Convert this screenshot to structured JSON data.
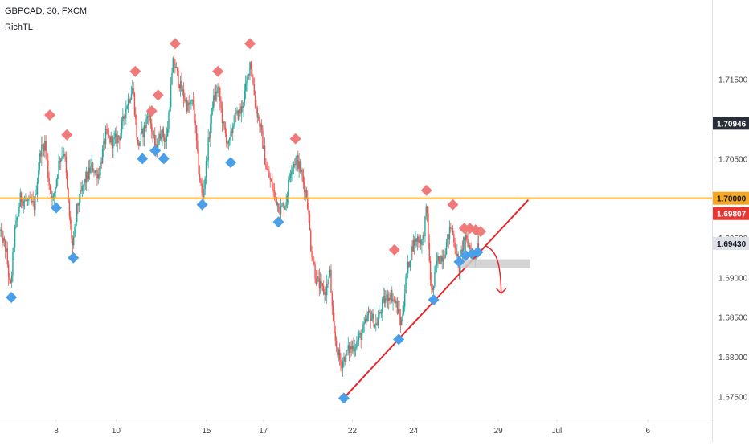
{
  "header": {
    "symbol_line": "GBPCAD, 30, FXCM",
    "indicator_name": "RichTL"
  },
  "chart_data": {
    "type": "candlestick",
    "title": "GBPCAD, 30, FXCM",
    "ylim": [
      1.6722,
      1.725
    ],
    "xlim": [
      0,
      100
    ],
    "grid": false,
    "price_axis_side": "right",
    "x_ticks": [
      {
        "label": "8",
        "x": 7.9
      },
      {
        "label": "10",
        "x": 16.3
      },
      {
        "label": "15",
        "x": 29.0
      },
      {
        "label": "17",
        "x": 37.0
      },
      {
        "label": "22",
        "x": 49.5
      },
      {
        "label": "24",
        "x": 58.1
      },
      {
        "label": "29",
        "x": 70.0
      },
      {
        "label": "Jul",
        "x": 78.2
      },
      {
        "label": "6",
        "x": 91.0
      }
    ],
    "y_ticks": [
      {
        "label": "1.71500",
        "y": 1.715
      },
      {
        "label": "1.71000",
        "y": 1.71
      },
      {
        "label": "1.70500",
        "y": 1.705
      },
      {
        "label": "1.70000",
        "y": 1.7
      },
      {
        "label": "1.69500",
        "y": 1.695
      },
      {
        "label": "1.69000",
        "y": 1.69
      },
      {
        "label": "1.68500",
        "y": 1.685
      },
      {
        "label": "1.68000",
        "y": 1.68
      },
      {
        "label": "1.67500",
        "y": 1.675
      }
    ],
    "price_labels": [
      {
        "label": "1.70946",
        "y": 1.70946,
        "style": "dark"
      },
      {
        "label": "1.70000",
        "y": 1.7,
        "style": "orange"
      },
      {
        "label": "1.69807",
        "y": 1.69807,
        "style": "red"
      },
      {
        "label": "1.69430",
        "y": 1.6943,
        "style": "light"
      }
    ],
    "price_path": [
      [
        0.0,
        1.696
      ],
      [
        1.0,
        1.6935
      ],
      [
        1.6,
        1.6882
      ],
      [
        2.2,
        1.6955
      ],
      [
        3.0,
        1.7
      ],
      [
        4.0,
        1.6995
      ],
      [
        5.0,
        1.699
      ],
      [
        5.8,
        1.706
      ],
      [
        6.5,
        1.707
      ],
      [
        7.0,
        1.702
      ],
      [
        7.6,
        1.6995
      ],
      [
        8.5,
        1.705
      ],
      [
        9.2,
        1.706
      ],
      [
        9.8,
        1.6985
      ],
      [
        10.4,
        1.6935
      ],
      [
        11.0,
        1.699
      ],
      [
        12.0,
        1.702
      ],
      [
        13.0,
        1.704
      ],
      [
        14.0,
        1.703
      ],
      [
        15.0,
        1.708
      ],
      [
        16.0,
        1.707
      ],
      [
        17.0,
        1.708
      ],
      [
        18.0,
        1.712
      ],
      [
        18.8,
        1.714
      ],
      [
        19.5,
        1.7065
      ],
      [
        20.5,
        1.709
      ],
      [
        21.0,
        1.711
      ],
      [
        22.0,
        1.706
      ],
      [
        22.8,
        1.7085
      ],
      [
        23.5,
        1.707
      ],
      [
        24.5,
        1.7175
      ],
      [
        25.5,
        1.714
      ],
      [
        26.5,
        1.7115
      ],
      [
        27.3,
        1.712
      ],
      [
        28.0,
        1.704
      ],
      [
        28.6,
        1.6998
      ],
      [
        29.3,
        1.706
      ],
      [
        30.0,
        1.712
      ],
      [
        30.8,
        1.714
      ],
      [
        31.5,
        1.709
      ],
      [
        32.3,
        1.7065
      ],
      [
        33.0,
        1.71
      ],
      [
        34.0,
        1.711
      ],
      [
        34.8,
        1.7145
      ],
      [
        35.3,
        1.7175
      ],
      [
        36.0,
        1.712
      ],
      [
        36.8,
        1.7085
      ],
      [
        37.5,
        1.704
      ],
      [
        38.5,
        1.701
      ],
      [
        39.5,
        1.6985
      ],
      [
        40.3,
        1.6995
      ],
      [
        41.0,
        1.704
      ],
      [
        41.8,
        1.705
      ],
      [
        42.5,
        1.703
      ],
      [
        43.3,
        1.7
      ],
      [
        43.8,
        1.694
      ],
      [
        44.5,
        1.69
      ],
      [
        45.0,
        1.689
      ],
      [
        45.8,
        1.688
      ],
      [
        46.5,
        1.6905
      ],
      [
        47.0,
        1.683
      ],
      [
        48.0,
        1.679
      ],
      [
        49.0,
        1.6808
      ],
      [
        50.0,
        1.6815
      ],
      [
        51.0,
        1.683
      ],
      [
        52.0,
        1.6855
      ],
      [
        53.0,
        1.684
      ],
      [
        54.0,
        1.687
      ],
      [
        55.0,
        1.688
      ],
      [
        55.8,
        1.6865
      ],
      [
        56.5,
        1.684
      ],
      [
        57.2,
        1.69
      ],
      [
        58.0,
        1.694
      ],
      [
        58.8,
        1.695
      ],
      [
        59.5,
        1.6945
      ],
      [
        60.1,
        1.699
      ],
      [
        60.5,
        1.6905
      ],
      [
        60.9,
        1.688
      ],
      [
        61.5,
        1.692
      ],
      [
        62.5,
        1.693
      ],
      [
        63.5,
        1.6965
      ],
      [
        64.0,
        1.6945
      ],
      [
        64.6,
        1.691
      ],
      [
        65.3,
        1.695
      ],
      [
        66.0,
        1.694
      ],
      [
        66.7,
        1.6925
      ],
      [
        67.2,
        1.6943
      ]
    ],
    "markers_high": [
      {
        "x": 7.0,
        "y": 1.7105
      },
      {
        "x": 9.4,
        "y": 1.708
      },
      {
        "x": 19.0,
        "y": 1.716
      },
      {
        "x": 21.3,
        "y": 1.711
      },
      {
        "x": 22.2,
        "y": 1.713
      },
      {
        "x": 24.6,
        "y": 1.7195
      },
      {
        "x": 30.6,
        "y": 1.716
      },
      {
        "x": 35.1,
        "y": 1.7195
      },
      {
        "x": 41.5,
        "y": 1.7075
      },
      {
        "x": 55.4,
        "y": 1.6935
      },
      {
        "x": 59.9,
        "y": 1.701
      },
      {
        "x": 63.6,
        "y": 1.6992
      },
      {
        "x": 65.2,
        "y": 1.6962
      },
      {
        "x": 66.0,
        "y": 1.6962
      },
      {
        "x": 66.8,
        "y": 1.696
      },
      {
        "x": 67.5,
        "y": 1.6958
      }
    ],
    "markers_low": [
      {
        "x": 1.6,
        "y": 1.6875
      },
      {
        "x": 7.9,
        "y": 1.6988
      },
      {
        "x": 10.3,
        "y": 1.6925
      },
      {
        "x": 20.0,
        "y": 1.705
      },
      {
        "x": 21.8,
        "y": 1.706
      },
      {
        "x": 23.0,
        "y": 1.705
      },
      {
        "x": 28.4,
        "y": 1.6992
      },
      {
        "x": 32.4,
        "y": 1.7045
      },
      {
        "x": 39.1,
        "y": 1.697
      },
      {
        "x": 48.3,
        "y": 1.6748
      },
      {
        "x": 56.0,
        "y": 1.6822
      },
      {
        "x": 60.9,
        "y": 1.6872
      },
      {
        "x": 64.5,
        "y": 1.692
      },
      {
        "x": 65.4,
        "y": 1.6928
      },
      {
        "x": 66.3,
        "y": 1.693
      },
      {
        "x": 67.1,
        "y": 1.6932
      }
    ],
    "annotations": {
      "horizontal_level": {
        "y": 1.7,
        "color": "#f5a623"
      },
      "trendline": {
        "points": [
          [
            48.3,
            1.6748
          ],
          [
            74.2,
            1.6998
          ]
        ],
        "color": "#e8262b"
      },
      "target_box": {
        "x1": 64.8,
        "x2": 74.5,
        "y1": 1.6912,
        "y2": 1.6923,
        "color": "#cccccc"
      },
      "forecast_arrow": {
        "points": [
          [
            68.2,
            1.694
          ],
          [
            69.8,
            1.6934
          ],
          [
            70.3,
            1.6917
          ],
          [
            70.4,
            1.688
          ]
        ],
        "color": "#e8262b"
      }
    },
    "colors": {
      "up": "#26a69a",
      "down": "#ef5350",
      "marker_high": "#f07a7a",
      "marker_low": "#4a9fe8",
      "axis_text": "#444444",
      "axis_line": "#e0e3eb"
    }
  }
}
